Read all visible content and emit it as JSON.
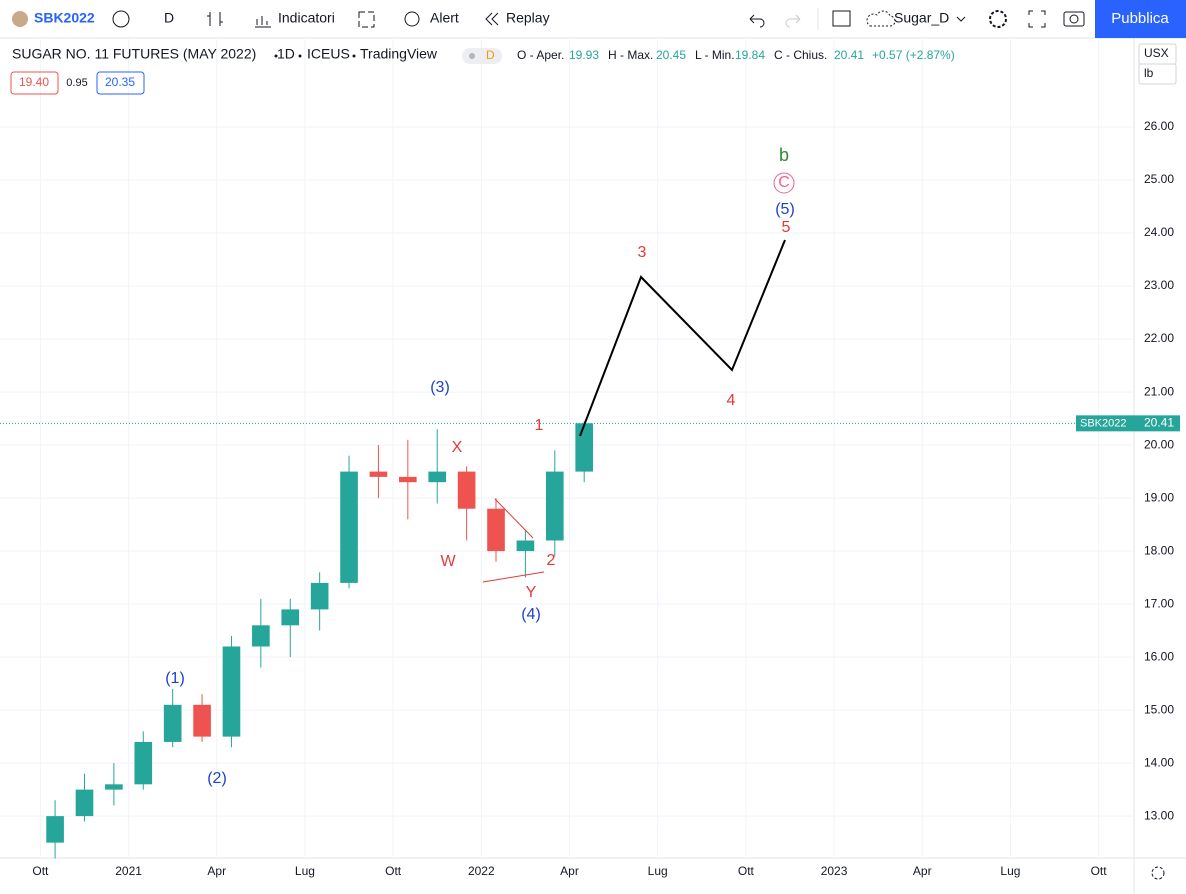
{
  "toolbar": {
    "symbol": "SBK2022",
    "interval": "D",
    "indicators": "Indicatori",
    "alert": "Alert",
    "replay": "Replay",
    "layout": "Sugar_D",
    "publish": "Pubblica"
  },
  "legend": {
    "title": "SUGAR NO. 11 FUTURES (MAY 2022)",
    "interval": "1D",
    "exchange": "ICEUS",
    "source": "TradingView",
    "badge": "D",
    "open_label": "O - Aper.",
    "open": "19.93",
    "high_label": "H - Max.",
    "high": "20.45",
    "low_label": "L - Min.",
    "low": "19.84",
    "close_label": "C - Chius.",
    "close": "20.41",
    "change": "+0.57 (+2.87%)",
    "sell": "19.40",
    "spread": "0.95",
    "buy": "20.35"
  },
  "units": {
    "currency": "USX",
    "unit": "lb"
  },
  "chart_data": {
    "type": "candlestick",
    "x": [
      "2020-10",
      "2020-11",
      "2020-12",
      "2021-01",
      "2021-02",
      "2021-03",
      "2021-04",
      "2021-05",
      "2021-06",
      "2021-07",
      "2021-08",
      "2021-09",
      "2021-10",
      "2021-11",
      "2021-12",
      "2022-01",
      "2022-02",
      "2022-03",
      "2022-04"
    ],
    "open": [
      12.5,
      13.0,
      13.5,
      13.6,
      14.4,
      15.1,
      14.5,
      16.2,
      16.6,
      16.9,
      17.4,
      19.5,
      19.4,
      19.3,
      19.5,
      18.8,
      18.0,
      18.2,
      19.5
    ],
    "high": [
      13.3,
      13.8,
      14.0,
      14.6,
      15.4,
      15.3,
      16.4,
      17.1,
      17.1,
      17.6,
      19.8,
      20.0,
      20.1,
      20.3,
      19.6,
      19.0,
      18.4,
      19.9,
      20.45
    ],
    "low": [
      12.2,
      12.9,
      13.2,
      13.5,
      14.3,
      14.4,
      14.3,
      15.8,
      16.0,
      16.5,
      17.3,
      19.0,
      18.6,
      18.9,
      18.2,
      17.8,
      17.5,
      17.9,
      19.3
    ],
    "close": [
      13.0,
      13.5,
      13.6,
      14.4,
      15.1,
      14.5,
      16.2,
      16.6,
      16.9,
      17.4,
      19.5,
      19.4,
      19.3,
      19.5,
      18.8,
      18.0,
      18.2,
      19.5,
      20.41
    ],
    "up_color": "#26a69a",
    "down_color": "#ef5350",
    "xlim": [
      "2020-09",
      "2023-11"
    ],
    "xticks": [
      {
        "value": "2020-10",
        "label": "Ott"
      },
      {
        "value": "2021-01",
        "label": "2021"
      },
      {
        "value": "2021-04",
        "label": "Apr"
      },
      {
        "value": "2021-07",
        "label": "Lug"
      },
      {
        "value": "2021-10",
        "label": "Ott"
      },
      {
        "value": "2022-01",
        "label": "2022"
      },
      {
        "value": "2022-04",
        "label": "Apr"
      },
      {
        "value": "2022-07",
        "label": "Lug"
      },
      {
        "value": "2022-10",
        "label": "Ott"
      },
      {
        "value": "2023-01",
        "label": "2023"
      },
      {
        "value": "2023-04",
        "label": "Apr"
      },
      {
        "value": "2023-07",
        "label": "Lug"
      },
      {
        "value": "2023-10",
        "label": "Ott"
      }
    ],
    "ylim": [
      12.21,
      27.68
    ],
    "yticks": [
      {
        "value": 13,
        "label": "13.00"
      },
      {
        "value": 14,
        "label": "14.00"
      },
      {
        "value": 15,
        "label": "15.00"
      },
      {
        "value": 16,
        "label": "16.00"
      },
      {
        "value": 17,
        "label": "17.00"
      },
      {
        "value": 18,
        "label": "18.00"
      },
      {
        "value": 19,
        "label": "19.00"
      },
      {
        "value": 20,
        "label": "20.00"
      },
      {
        "value": 21,
        "label": "21.00"
      },
      {
        "value": 22,
        "label": "22.00"
      },
      {
        "value": 23,
        "label": "23.00"
      },
      {
        "value": 24,
        "label": "24.00"
      },
      {
        "value": 25,
        "label": "25.00"
      },
      {
        "value": 26,
        "label": "26.00"
      }
    ],
    "grid": true,
    "last_price": {
      "symbol": "SBK2022",
      "value": {
        "value": 20.41,
        "label": "20.41"
      },
      "color": "#26a69a"
    },
    "annotations": [
      {
        "text": "(1)",
        "color": "#1e3fcf"
      },
      {
        "text": "(2)",
        "color": "#1e3fcf"
      },
      {
        "text": "(3)",
        "color": "#1e3fcf"
      },
      {
        "text": "X",
        "color": "#e53935"
      },
      {
        "text": "W",
        "color": "#e53935"
      },
      {
        "text": "Y",
        "color": "#e53935"
      },
      {
        "text": "(4)",
        "color": "#1e3fcf"
      },
      {
        "text": "1",
        "color": "#e53935"
      },
      {
        "text": "2",
        "color": "#e53935"
      },
      {
        "text": "3",
        "color": "#e53935"
      },
      {
        "text": "4",
        "color": "#e53935"
      },
      {
        "text": "5",
        "color": "#e53935"
      },
      {
        "text": "(5)",
        "color": "#1e3fcf"
      },
      {
        "text": "C",
        "color": "#f06292"
      },
      {
        "text": "b",
        "color": "#2e8b32"
      }
    ]
  }
}
